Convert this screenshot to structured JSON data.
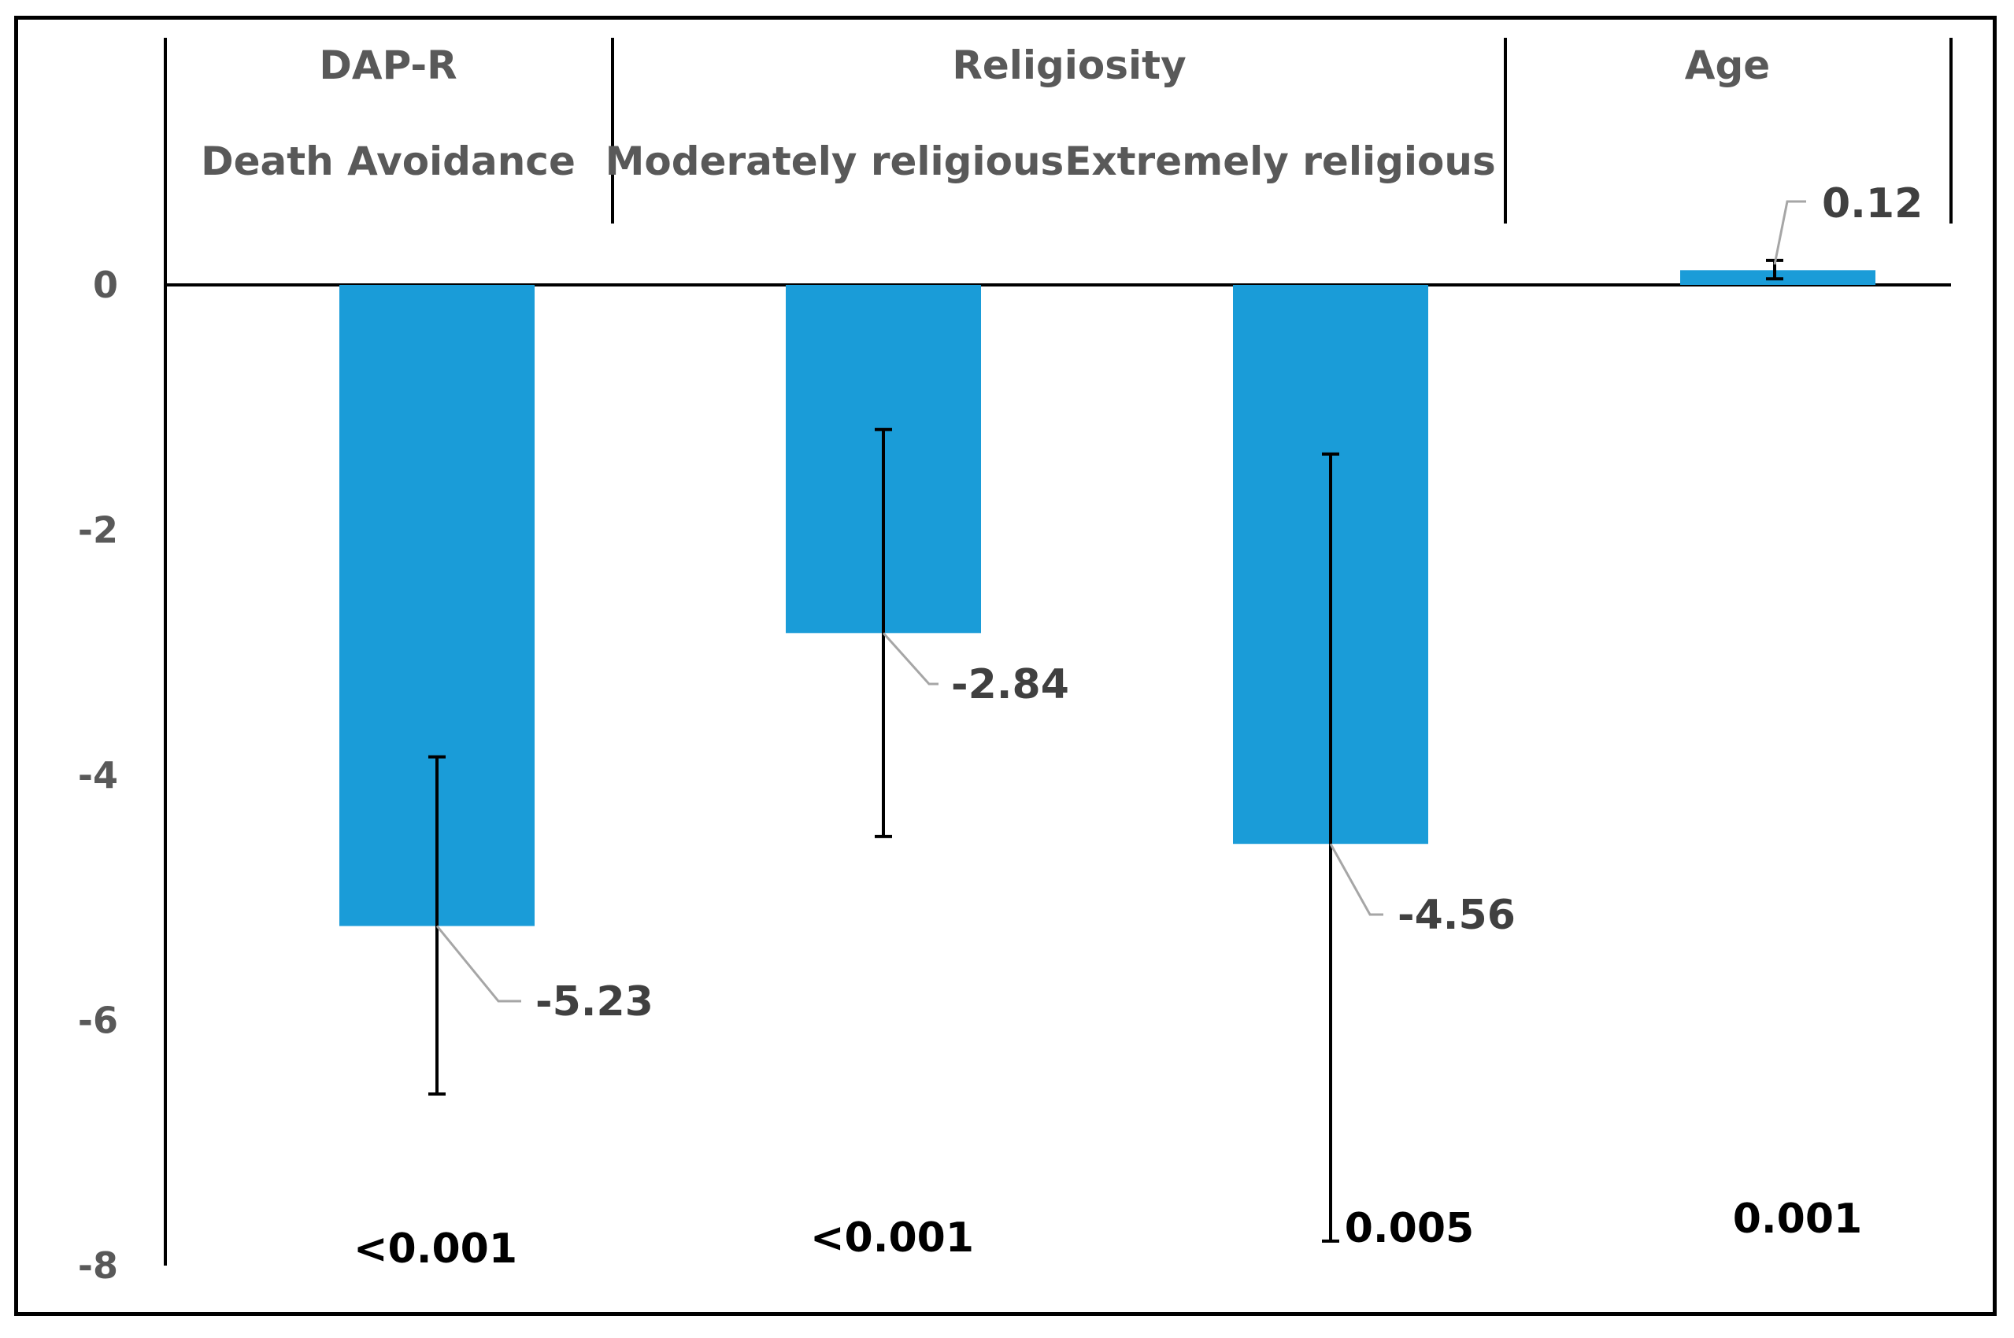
{
  "chart_data": {
    "type": "bar",
    "title": "",
    "xlabel": "",
    "ylabel": "",
    "ylim": [
      -8,
      0
    ],
    "yticks": [
      0,
      -2,
      -4,
      -6,
      -8
    ],
    "grid": false,
    "legend": "none",
    "bar_color": "#1a9cd8",
    "groups": [
      {
        "label": "DAP-R",
        "categories": [
          "Death Avoidance"
        ]
      },
      {
        "label": "Religiosity",
        "categories": [
          "Moderately religious",
          "Extremely religious"
        ]
      },
      {
        "label": "Age",
        "categories": [
          ""
        ]
      }
    ],
    "categories": [
      "Death Avoidance",
      "Moderately religious",
      "Extremely religious",
      ""
    ],
    "values": [
      -5.23,
      -2.84,
      -4.56,
      0.12
    ],
    "value_labels": [
      "-5.23",
      "-2.84",
      "-4.56",
      "0.12"
    ],
    "error_low": [
      -6.6,
      -4.5,
      -7.8,
      0.05
    ],
    "error_high": [
      -3.85,
      -1.18,
      -1.38,
      0.2
    ],
    "p_values": [
      "<0.001",
      "<0.001",
      "0.005",
      "0.001"
    ]
  }
}
